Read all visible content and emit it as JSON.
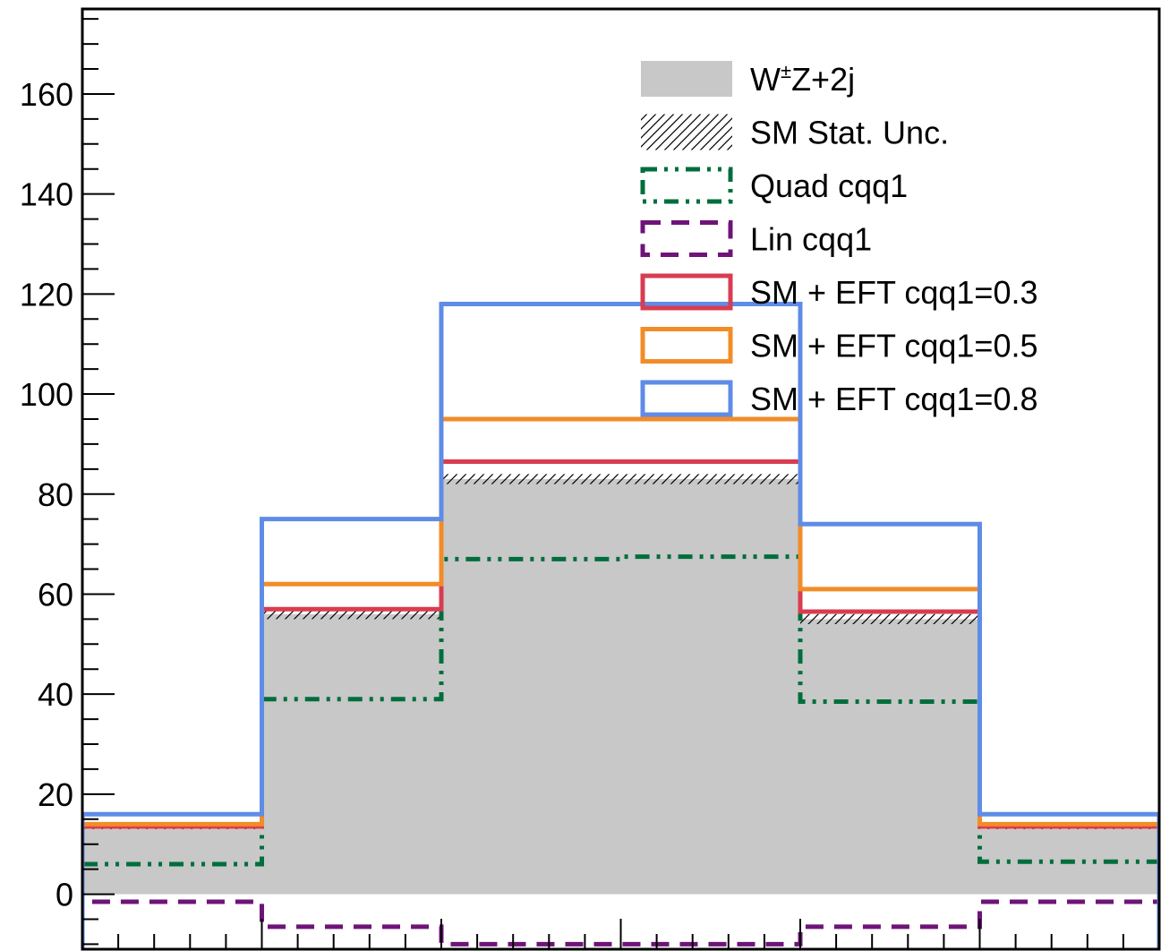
{
  "chart_data": {
    "type": "histogram",
    "bins": 6,
    "ylim": [
      -11,
      177
    ],
    "yticks": [
      0,
      20,
      40,
      60,
      80,
      100,
      120,
      140,
      160
    ],
    "grid": false,
    "legend_position": "top-right",
    "background": {
      "name": "W±Z+2j",
      "label_base": "W",
      "label_sup": "±",
      "label_rest": "Z+2j",
      "values": [
        13,
        56,
        83,
        83,
        55,
        13
      ],
      "color": "#c8c8c8"
    },
    "uncertainty": {
      "name": "SM Stat. Unc.",
      "lower": [
        13,
        55,
        82,
        82,
        54,
        13
      ],
      "upper": [
        14,
        57,
        84,
        84,
        56,
        14
      ]
    },
    "series": [
      {
        "name": "Quad cqq1",
        "values": [
          6,
          39,
          67,
          67.5,
          38.5,
          6.5
        ],
        "color": "#006e3c",
        "style": "dashdot"
      },
      {
        "name": "Lin cqq1",
        "values": [
          -1.5,
          -6.5,
          -10,
          -10,
          -6.5,
          -1.5
        ],
        "color": "#6e1478",
        "style": "dashed"
      },
      {
        "name": "SM + EFT cqq1=0.3",
        "values": [
          13.5,
          57,
          86.5,
          86.5,
          56.5,
          13.5
        ],
        "color": "#d93c50",
        "style": "solid"
      },
      {
        "name": "SM + EFT cqq1=0.5",
        "values": [
          14,
          62,
          95,
          95,
          61,
          14
        ],
        "color": "#f28c28",
        "style": "solid"
      },
      {
        "name": "SM + EFT cqq1=0.8",
        "values": [
          16,
          75,
          118,
          118,
          74,
          16
        ],
        "color": "#5f8ce6",
        "style": "solid"
      }
    ]
  }
}
